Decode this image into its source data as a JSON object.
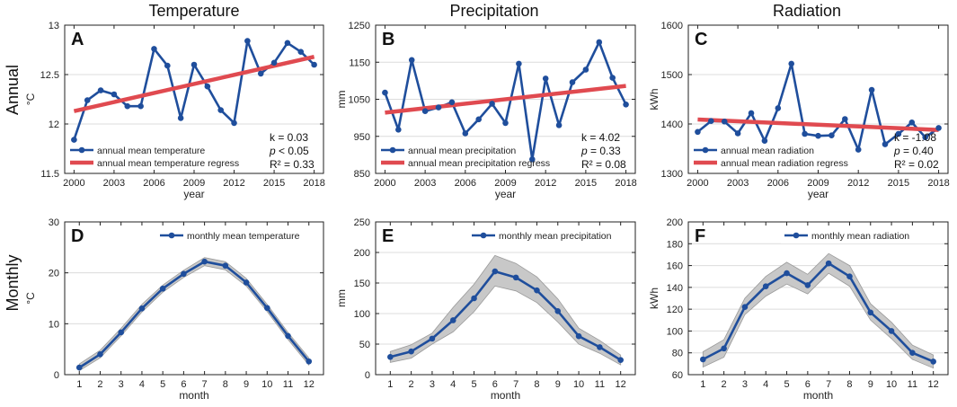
{
  "row_labels": {
    "annual": "Annual",
    "monthly": "Monthly"
  },
  "column_titles": [
    "Temperature",
    "Precipitation",
    "Radiation"
  ],
  "colors": {
    "line": "#1f4e9c",
    "regress": "#e04a50",
    "band": "#c8c8c8",
    "grid": "#dcdcdc"
  },
  "chart_data": [
    {
      "id": "A",
      "type": "line",
      "letter": "A",
      "xlabel": "year",
      "ylabel": "°C",
      "xlim": [
        1999.3,
        2018.7
      ],
      "ylim": [
        11.5,
        13
      ],
      "xticks": [
        2000,
        2003,
        2006,
        2009,
        2012,
        2015,
        2018
      ],
      "yticks": [
        11.5,
        12,
        12.5,
        13
      ],
      "ytick_labels": [
        "11.5",
        "12",
        "12.5",
        "13"
      ],
      "x": [
        2000,
        2001,
        2002,
        2003,
        2004,
        2005,
        2006,
        2007,
        2008,
        2009,
        2010,
        2011,
        2012,
        2013,
        2014,
        2015,
        2016,
        2017,
        2018
      ],
      "values": [
        11.84,
        12.24,
        12.34,
        12.3,
        12.18,
        12.18,
        12.76,
        12.59,
        12.06,
        12.6,
        12.38,
        12.14,
        12.01,
        12.84,
        12.51,
        12.62,
        12.82,
        12.73,
        12.6
      ],
      "regression": [
        [
          2000,
          12.13
        ],
        [
          2018,
          12.68
        ]
      ],
      "legend": [
        "annual mean temperature",
        "annual mean temperature regress"
      ],
      "stats": [
        "k = 0.03",
        "p < 0.05",
        "R² = 0.33"
      ]
    },
    {
      "id": "B",
      "type": "line",
      "letter": "B",
      "xlabel": "year",
      "ylabel": "mm",
      "xlim": [
        1999.3,
        2018.7
      ],
      "ylim": [
        850,
        1250
      ],
      "xticks": [
        2000,
        2003,
        2006,
        2009,
        2012,
        2015,
        2018
      ],
      "yticks": [
        850,
        950,
        1050,
        1150,
        1250
      ],
      "ytick_labels": [
        "850",
        "950",
        "1050",
        "1150",
        "1250"
      ],
      "x": [
        2000,
        2001,
        2002,
        2003,
        2004,
        2005,
        2006,
        2007,
        2008,
        2009,
        2010,
        2011,
        2012,
        2013,
        2014,
        2015,
        2016,
        2017,
        2018
      ],
      "values": [
        1068,
        968,
        1156,
        1018,
        1028,
        1042,
        958,
        996,
        1038,
        986,
        1146,
        888,
        1106,
        980,
        1096,
        1130,
        1204,
        1108,
        1036
      ],
      "regression": [
        [
          2000,
          1014
        ],
        [
          2018,
          1086
        ]
      ],
      "legend": [
        "annual mean precipitation",
        "annual mean precipitation regress"
      ],
      "stats": [
        "k = 4.02",
        "p = 0.33",
        "R² = 0.08"
      ]
    },
    {
      "id": "C",
      "type": "line",
      "letter": "C",
      "xlabel": "year",
      "ylabel": "kWh",
      "xlim": [
        1999.3,
        2018.7
      ],
      "ylim": [
        1300,
        1600
      ],
      "xticks": [
        2000,
        2003,
        2006,
        2009,
        2012,
        2015,
        2018
      ],
      "yticks": [
        1300,
        1400,
        1500,
        1600
      ],
      "ytick_labels": [
        "1300",
        "1400",
        "1500",
        "1600"
      ],
      "x": [
        2000,
        2001,
        2002,
        2003,
        2004,
        2005,
        2006,
        2007,
        2008,
        2009,
        2010,
        2011,
        2012,
        2013,
        2014,
        2015,
        2016,
        2017,
        2018
      ],
      "values": [
        1384,
        1406,
        1405,
        1381,
        1422,
        1366,
        1432,
        1522,
        1380,
        1376,
        1377,
        1410,
        1348,
        1469,
        1359,
        1380,
        1403,
        1373,
        1392
      ],
      "regression": [
        [
          2000,
          1409
        ],
        [
          2018,
          1388
        ]
      ],
      "legend": [
        "annual mean radiation",
        "annual mean radiation regress"
      ],
      "stats": [
        "k = -1.08",
        "p = 0.40",
        "R² = 0.02"
      ]
    },
    {
      "id": "D",
      "type": "line",
      "letter": "D",
      "xlabel": "month",
      "ylabel": "°C",
      "xlim": [
        0.3,
        12.7
      ],
      "ylim": [
        0,
        30
      ],
      "xticks": [
        1,
        2,
        3,
        4,
        5,
        6,
        7,
        8,
        9,
        10,
        11,
        12
      ],
      "yticks": [
        0,
        10,
        20,
        30
      ],
      "ytick_labels": [
        "0",
        "10",
        "20",
        "30"
      ],
      "x": [
        1,
        2,
        3,
        4,
        5,
        6,
        7,
        8,
        9,
        10,
        11,
        12
      ],
      "values": [
        1.4,
        4.0,
        8.3,
        13.0,
        16.9,
        19.8,
        22.2,
        21.4,
        18.1,
        13.1,
        7.6,
        2.6
      ],
      "band_lower": [
        0.8,
        3.3,
        7.6,
        12.3,
        16.2,
        19.1,
        21.4,
        20.6,
        17.4,
        12.4,
        6.9,
        1.9
      ],
      "band_upper": [
        2.1,
        4.8,
        9.1,
        13.8,
        17.6,
        20.5,
        23.0,
        22.2,
        18.9,
        13.8,
        8.3,
        3.3
      ],
      "legend": [
        "monthly mean temperature"
      ]
    },
    {
      "id": "E",
      "type": "line",
      "letter": "E",
      "xlabel": "month",
      "ylabel": "mm",
      "xlim": [
        0.3,
        12.7
      ],
      "ylim": [
        0,
        250
      ],
      "xticks": [
        1,
        2,
        3,
        4,
        5,
        6,
        7,
        8,
        9,
        10,
        11,
        12
      ],
      "yticks": [
        0,
        50,
        100,
        150,
        200,
        250
      ],
      "ytick_labels": [
        "0",
        "50",
        "100",
        "150",
        "200",
        "250"
      ],
      "x": [
        1,
        2,
        3,
        4,
        5,
        6,
        7,
        8,
        9,
        10,
        11,
        12
      ],
      "values": [
        29,
        38,
        59,
        89,
        125,
        169,
        159,
        138,
        104,
        63,
        45,
        24
      ],
      "band_lower": [
        20,
        27,
        50,
        70,
        103,
        145,
        137,
        118,
        86,
        50,
        35,
        16
      ],
      "band_upper": [
        38,
        49,
        68,
        110,
        148,
        195,
        182,
        160,
        124,
        76,
        56,
        32
      ],
      "legend": [
        "monthly mean precipitation"
      ]
    },
    {
      "id": "F",
      "type": "line",
      "letter": "F",
      "xlabel": "month",
      "ylabel": "kWh",
      "xlim": [
        0.3,
        12.7
      ],
      "ylim": [
        60,
        200
      ],
      "xticks": [
        1,
        2,
        3,
        4,
        5,
        6,
        7,
        8,
        9,
        10,
        11,
        12
      ],
      "yticks": [
        60,
        80,
        100,
        120,
        140,
        160,
        180,
        200
      ],
      "ytick_labels": [
        "60",
        "80",
        "100",
        "120",
        "140",
        "160",
        "180",
        "200"
      ],
      "x": [
        1,
        2,
        3,
        4,
        5,
        6,
        7,
        8,
        9,
        10,
        11,
        12
      ],
      "values": [
        74,
        84,
        122,
        141,
        153,
        142,
        162,
        150,
        117,
        100,
        80,
        72
      ],
      "band_lower": [
        67,
        76,
        115,
        132,
        143,
        134,
        153,
        141,
        110,
        93,
        74,
        66
      ],
      "band_upper": [
        81,
        92,
        130,
        150,
        163,
        152,
        171,
        160,
        125,
        108,
        87,
        78
      ],
      "legend": [
        "monthly mean radiation"
      ]
    }
  ]
}
